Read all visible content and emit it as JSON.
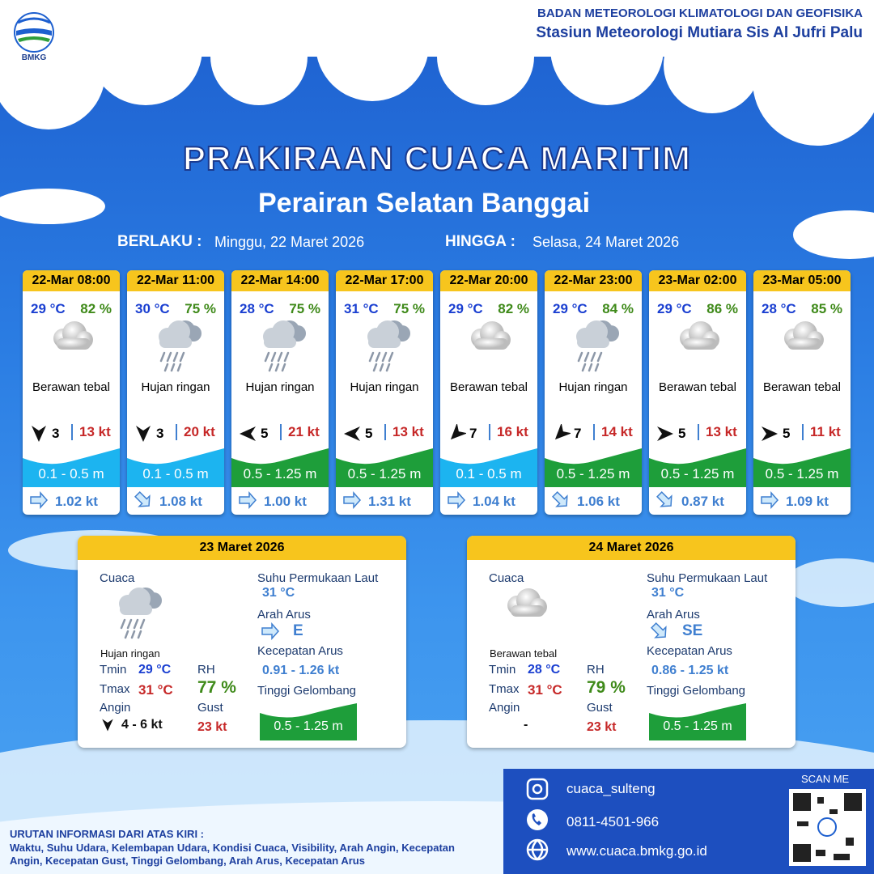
{
  "header": {
    "logo": "BMKG",
    "org": "BADAN METEOROLOGI KLIMATOLOGI DAN GEOFISIKA",
    "station": "Stasiun Meteorologi Mutiara Sis Al Jufri Palu"
  },
  "title": "PRAKIRAAN CUACA MARITIM",
  "subtitle": "Perairan Selatan Banggai",
  "validity": {
    "from_label": "BERLAKU :",
    "from": "Minggu, 22 Maret 2026",
    "to_label": "HINGGA :",
    "to": "Selasa, 24 Maret 2026"
  },
  "forecasts": [
    {
      "time": "22-Mar 08:00",
      "temp": "29 °C",
      "rh": "82 %",
      "icon": "cloud",
      "weather": "Berawan tebal",
      "wind_arrow": 180,
      "wind": "3",
      "gust": "13 kt",
      "wave": "0.1 - 0.5 m",
      "wave_color": "#1cb4f0",
      "current_arrow": 90,
      "current": "1.02 kt"
    },
    {
      "time": "22-Mar 11:00",
      "temp": "30 °C",
      "rh": "75 %",
      "icon": "rain",
      "weather": "Hujan ringan",
      "wind_arrow": 180,
      "wind": "3",
      "gust": "20 kt",
      "wave": "0.1 - 0.5 m",
      "wave_color": "#1cb4f0",
      "current_arrow": 135,
      "current": "1.08 kt"
    },
    {
      "time": "22-Mar 14:00",
      "temp": "28 °C",
      "rh": "75 %",
      "icon": "rain",
      "weather": "Hujan ringan",
      "wind_arrow": 270,
      "wind": "5",
      "gust": "21 kt",
      "wave": "0.5 - 1.25 m",
      "wave_color": "#1e9e3a",
      "current_arrow": 90,
      "current": "1.00 kt"
    },
    {
      "time": "22-Mar 17:00",
      "temp": "31 °C",
      "rh": "75 %",
      "icon": "rain",
      "weather": "Hujan ringan",
      "wind_arrow": 270,
      "wind": "5",
      "gust": "13 kt",
      "wave": "0.5 - 1.25 m",
      "wave_color": "#1e9e3a",
      "current_arrow": 90,
      "current": "1.31 kt"
    },
    {
      "time": "22-Mar 20:00",
      "temp": "29 °C",
      "rh": "82 %",
      "icon": "cloud",
      "weather": "Berawan tebal",
      "wind_arrow": 225,
      "wind": "7",
      "gust": "16 kt",
      "wave": "0.1 - 0.5 m",
      "wave_color": "#1cb4f0",
      "current_arrow": 90,
      "current": "1.04 kt"
    },
    {
      "time": "22-Mar 23:00",
      "temp": "29 °C",
      "rh": "84 %",
      "icon": "rain",
      "weather": "Hujan ringan",
      "wind_arrow": 225,
      "wind": "7",
      "gust": "14 kt",
      "wave": "0.5 - 1.25 m",
      "wave_color": "#1e9e3a",
      "current_arrow": 135,
      "current": "1.06 kt"
    },
    {
      "time": "23-Mar 02:00",
      "temp": "29 °C",
      "rh": "86 %",
      "icon": "cloud",
      "weather": "Berawan tebal",
      "wind_arrow": 90,
      "wind": "5",
      "gust": "13 kt",
      "wave": "0.5 - 1.25 m",
      "wave_color": "#1e9e3a",
      "current_arrow": 135,
      "current": "0.87 kt"
    },
    {
      "time": "23-Mar 05:00",
      "temp": "28 °C",
      "rh": "85 %",
      "icon": "cloud",
      "weather": "Berawan tebal",
      "wind_arrow": 90,
      "wind": "5",
      "gust": "11 kt",
      "wave": "0.5 - 1.25 m",
      "wave_color": "#1e9e3a",
      "current_arrow": 90,
      "current": "1.09 kt"
    }
  ],
  "daily": [
    {
      "date": "23 Maret 2026",
      "weather_label": "Cuaca",
      "icon": "rain",
      "weather": "Hujan ringan",
      "tmin_label": "Tmin",
      "tmin": "29 °C",
      "tmax_label": "Tmax",
      "tmax": "31 °C",
      "rh_label": "RH",
      "rh": "77 %",
      "wind_label": "Angin",
      "wind_arrow": 180,
      "wind": "4 - 6 kt",
      "gust_label": "Gust",
      "gust": "23 kt",
      "sst_label": "Suhu Permukaan Laut",
      "sst": "31 °C",
      "current_dir_label": "Arah Arus",
      "current_arrow": 90,
      "current_dir": "E",
      "current_speed_label": "Kecepatan Arus",
      "current_speed": "0.91 - 1.26 kt",
      "wave_label": "Tinggi Gelombang",
      "wave": "0.5 - 1.25 m"
    },
    {
      "date": "24 Maret 2026",
      "weather_label": "Cuaca",
      "icon": "cloud",
      "weather": "Berawan tebal",
      "tmin_label": "Tmin",
      "tmin": "28 °C",
      "tmax_label": "Tmax",
      "tmax": "31 °C",
      "rh_label": "RH",
      "rh": "79 %",
      "wind_label": "Angin",
      "wind": "-",
      "gust_label": "Gust",
      "gust": "23 kt",
      "sst_label": "Suhu Permukaan Laut",
      "sst": "31 °C",
      "current_dir_label": "Arah Arus",
      "current_arrow": 135,
      "current_dir": "SE",
      "current_speed_label": "Kecepatan Arus",
      "current_speed": "0.86 - 1.25 kt",
      "wave_label": "Tinggi Gelombang",
      "wave": "0.5 - 1.25 m"
    }
  ],
  "footer": {
    "info_title": "URUTAN INFORMASI DARI ATAS KIRI :",
    "info_text": "Waktu, Suhu Udara, Kelembapan Udara, Kondisi Cuaca, Visibility, Arah Angin, Kecepatan Angin, Kecepatan Gust, Tinggi Gelombang, Arah Arus, Kecepatan Arus",
    "instagram": "cuaca_sulteng",
    "phone": "0811-4501-966",
    "website": "www.cuaca.bmkg.go.id",
    "scan": "SCAN ME"
  }
}
